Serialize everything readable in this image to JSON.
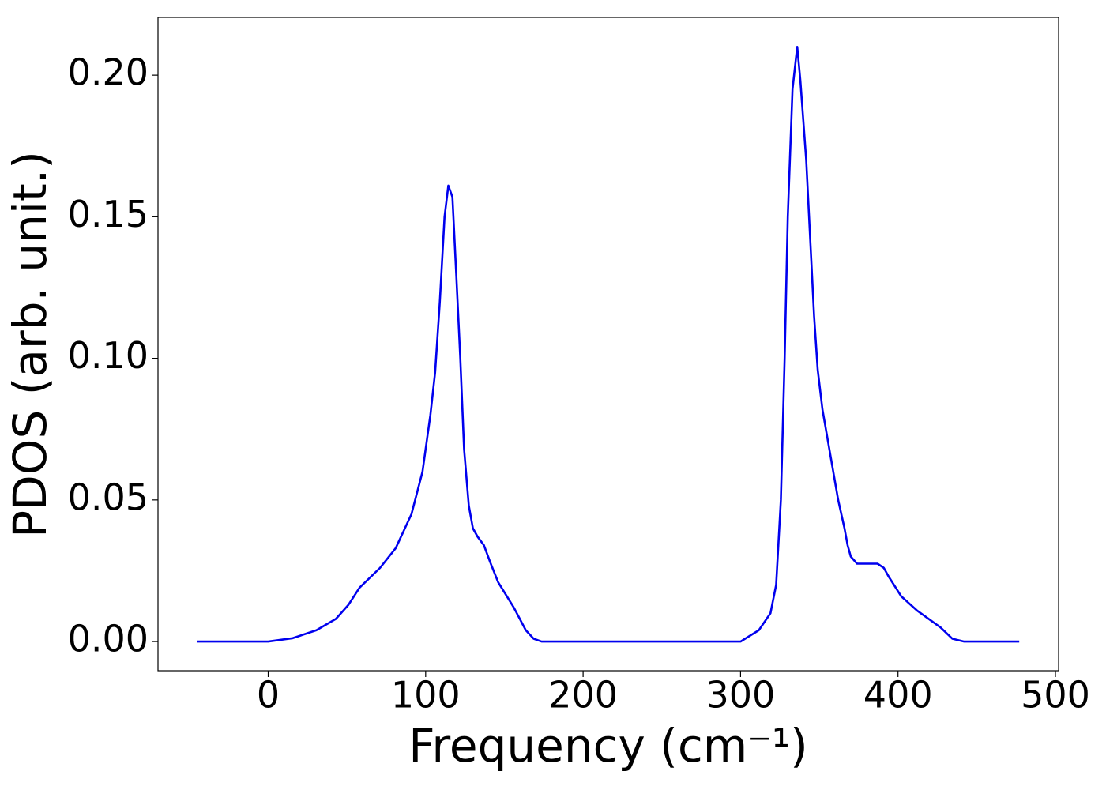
{
  "chart_data": {
    "type": "line",
    "xlabel": "Frequency (cm⁻¹)",
    "ylabel": "PDOS (arb. unit.)",
    "x": [
      -45,
      0,
      15.6,
      30.6,
      43,
      51,
      58,
      71,
      81,
      91,
      98,
      103,
      106,
      109,
      112,
      114.4,
      117,
      119.4,
      122,
      124.4,
      127.4,
      130,
      133,
      137,
      141,
      146,
      156,
      163.6,
      168.6,
      173.6,
      200,
      300,
      301.5,
      311.6,
      319,
      322.6,
      325.6,
      328,
      330,
      333,
      336,
      338,
      341.7,
      346.7,
      349,
      352,
      357,
      362,
      366,
      368,
      370,
      374,
      387,
      391,
      394,
      402,
      412,
      427,
      434.5,
      442,
      477
    ],
    "series": [
      {
        "name": "PDOS",
        "color": "#0000ee",
        "values": [
          0,
          0,
          0.0012,
          0.004,
          0.008,
          0.013,
          0.019,
          0.026,
          0.033,
          0.045,
          0.06,
          0.08,
          0.095,
          0.12,
          0.15,
          0.161,
          0.157,
          0.13,
          0.1,
          0.068,
          0.048,
          0.04,
          0.037,
          0.034,
          0.028,
          0.021,
          0.012,
          0.004,
          0.001,
          0,
          0,
          0,
          0.0005,
          0.004,
          0.01,
          0.02,
          0.05,
          0.1,
          0.15,
          0.195,
          0.21,
          0.198,
          0.17,
          0.115,
          0.096,
          0.082,
          0.066,
          0.05,
          0.04,
          0.034,
          0.03,
          0.0275,
          0.0275,
          0.026,
          0.023,
          0.016,
          0.011,
          0.005,
          0.001,
          0,
          0
        ]
      }
    ],
    "xlim": [
      -70,
      502
    ],
    "ylim": [
      -0.0103,
      0.2204
    ],
    "xticks": [
      0,
      100,
      200,
      300,
      400,
      500
    ],
    "yticks": [
      {
        "value": 0,
        "label": "0.00"
      },
      {
        "value": 0.05,
        "label": "0.05"
      },
      {
        "value": 0.1,
        "label": "0.10"
      },
      {
        "value": 0.15,
        "label": "0.15"
      },
      {
        "value": 0.2,
        "label": "0.20"
      }
    ],
    "grid": false
  }
}
